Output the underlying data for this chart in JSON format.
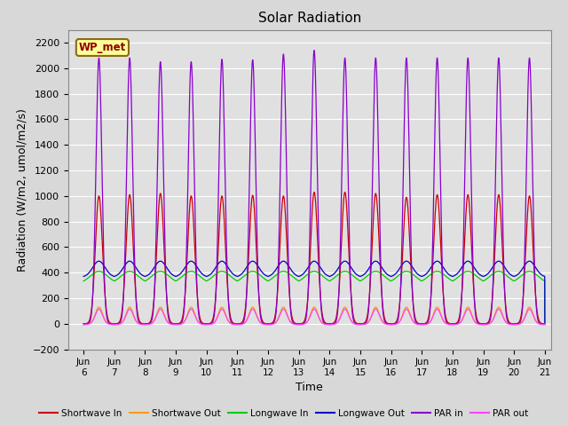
{
  "title": "Solar Radiation",
  "xlabel": "Time",
  "ylabel": "Radiation (W/m2, umol/m2/s)",
  "xlim_days": [
    5.5,
    21.2
  ],
  "ylim": [
    -200,
    2300
  ],
  "yticks": [
    -200,
    0,
    200,
    400,
    600,
    800,
    1000,
    1200,
    1400,
    1600,
    1800,
    2000,
    2200
  ],
  "xtick_labels": [
    "Jun 6",
    "Jun 7",
    "Jun 8",
    "Jun 9",
    "Jun 10",
    "Jun 11",
    "Jun 12",
    "Jun 13",
    "Jun 14",
    "Jun 15",
    "Jun 16",
    "Jun 17",
    "Jun 18",
    "Jun 19",
    "Jun 20",
    "Jun 21"
  ],
  "xtick_positions": [
    6,
    7,
    8,
    9,
    10,
    11,
    12,
    13,
    14,
    15,
    16,
    17,
    18,
    19,
    20,
    21
  ],
  "fig_bg_color": "#d8d8d8",
  "plot_bg_color": "#e0e0e0",
  "annotation_box": "WP_met",
  "annotation_color": "#8B0000",
  "annotation_bg": "#ffff99",
  "annotation_edge": "#8B6914",
  "grid_color": "#ffffff",
  "series": {
    "shortwave_in": {
      "color": "#cc0000",
      "label": "Shortwave In"
    },
    "shortwave_out": {
      "color": "#ff9900",
      "label": "Shortwave Out"
    },
    "longwave_in": {
      "color": "#00cc00",
      "label": "Longwave In"
    },
    "longwave_out": {
      "color": "#0000cc",
      "label": "Longwave Out"
    },
    "par_in": {
      "color": "#8800cc",
      "label": "PAR in"
    },
    "par_out": {
      "color": "#ff44ff",
      "label": "PAR out"
    }
  },
  "n_days": 15,
  "start_day": 6
}
